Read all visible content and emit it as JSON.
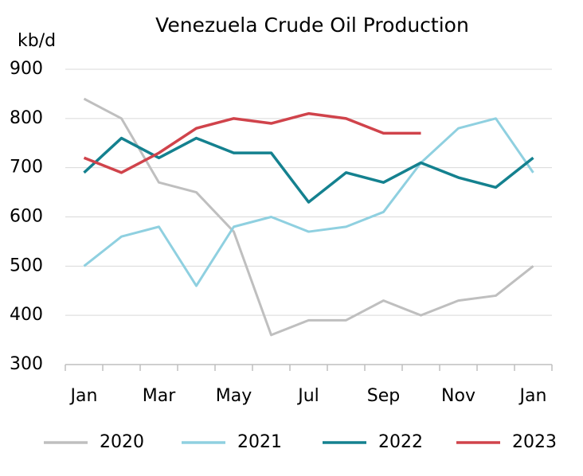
{
  "chart_data": {
    "type": "line",
    "title": "Venezuela Crude Oil Production",
    "y_label": "kb/d",
    "categories": [
      "Jan",
      null,
      "Mar",
      null,
      "May",
      null,
      "Jul",
      null,
      "Sep",
      null,
      "Nov",
      null,
      "Jan"
    ],
    "series": [
      {
        "name": "2020",
        "color": "#bfbfbf",
        "values": [
          840,
          800,
          670,
          650,
          570,
          360,
          390,
          390,
          430,
          400,
          430,
          440,
          500
        ]
      },
      {
        "name": "2021",
        "color": "#8fd0e0",
        "values": [
          500,
          560,
          580,
          460,
          580,
          600,
          570,
          580,
          610,
          710,
          780,
          800,
          690
        ]
      },
      {
        "name": "2022",
        "color": "#14818f",
        "values": [
          690,
          760,
          720,
          760,
          730,
          730,
          630,
          690,
          670,
          710,
          680,
          660,
          720
        ]
      },
      {
        "name": "2023",
        "color": "#d0434b",
        "values": [
          720,
          690,
          730,
          780,
          800,
          790,
          810,
          800,
          770,
          770,
          null,
          null,
          null
        ]
      }
    ],
    "ylim": [
      300,
      900
    ],
    "yticks": [
      300,
      400,
      500,
      600,
      700,
      800,
      900
    ],
    "grid": true,
    "legend": "bottom"
  }
}
